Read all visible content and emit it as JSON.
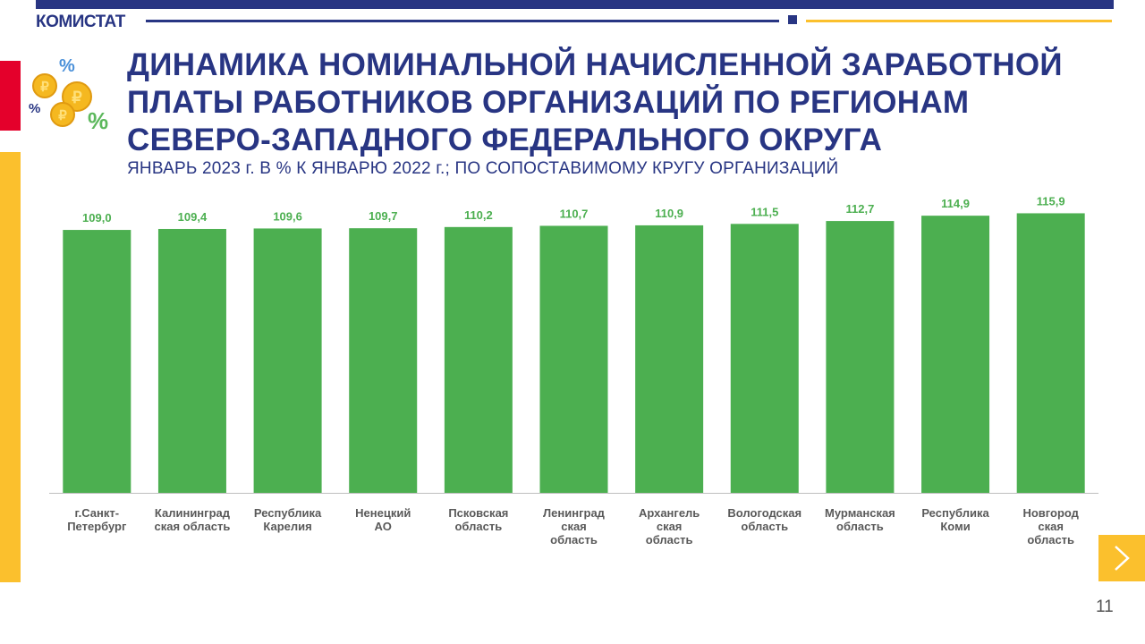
{
  "header": {
    "brand": "КОМИСТАТ"
  },
  "title_lines": [
    "ДИНАМИКА НОМИНАЛЬНОЙ НАЧИСЛЕННОЙ ЗАРАБОТНОЙ",
    "ПЛАТЫ РАБОТНИКОВ ОРГАНИЗАЦИЙ ПО РЕГИОНАМ",
    "СЕВЕРО-ЗАПАДНОГО ФЕДЕРАЛЬНОГО ОКРУГА"
  ],
  "subtitle": "ЯНВАРЬ 2023 г. В % К ЯНВАРЮ 2022 г.; ПО СОПОСТАВИМОМУ КРУГУ ОРГАНИЗАЦИЙ",
  "page_number": "11",
  "icons": {
    "logo": "coins-percent-icon",
    "next": "chevron-right-icon"
  },
  "colors": {
    "primary": "#283583",
    "bar": "#4caf50",
    "accent_yellow": "#fbc02d",
    "accent_red": "#e4002b"
  },
  "chart_data": {
    "type": "bar",
    "categories": [
      [
        "г.Санкт-",
        "Петербург"
      ],
      [
        "Калининград",
        "ская область"
      ],
      [
        "Республика",
        "Карелия"
      ],
      [
        "Ненецкий",
        "АО"
      ],
      [
        "Псковская",
        "область"
      ],
      [
        "Ленинград",
        "ская",
        "область"
      ],
      [
        "Архангель",
        "ская",
        "область"
      ],
      [
        "Вологодская",
        "область"
      ],
      [
        "Мурманская",
        "область"
      ],
      [
        "Республика",
        "Коми"
      ],
      [
        "Новгород",
        "ская",
        "область"
      ]
    ],
    "values": [
      109.0,
      109.4,
      109.6,
      109.7,
      110.2,
      110.7,
      110.9,
      111.5,
      112.7,
      114.9,
      115.9
    ],
    "value_labels": [
      "109,0",
      "109,4",
      "109,6",
      "109,7",
      "110,2",
      "110,7",
      "110,9",
      "111,5",
      "112,7",
      "114,9",
      "115,9"
    ],
    "ylim": [
      0,
      122
    ],
    "grid": false,
    "legend": "none"
  }
}
